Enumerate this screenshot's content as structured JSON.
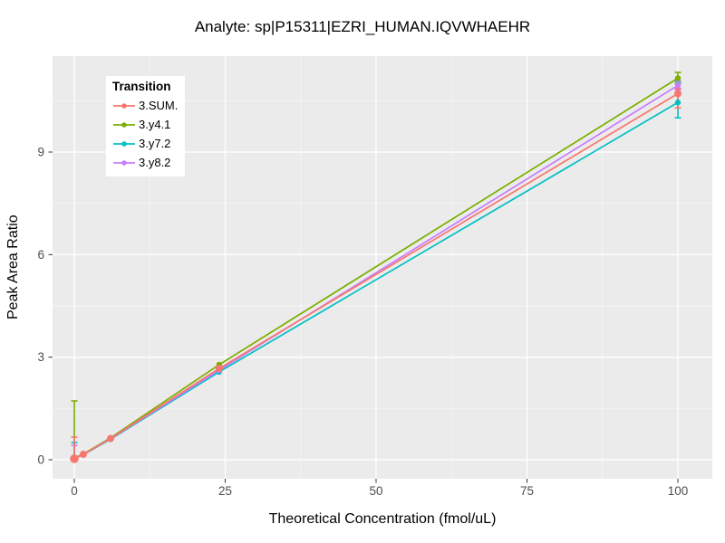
{
  "title": "Analyte: sp|P15311|EZRI_HUMAN.IQVWHAEHR",
  "chart_data": {
    "type": "line",
    "title": "Analyte: sp|P15311|EZRI_HUMAN.IQVWHAEHR",
    "xlabel": "Theoretical Concentration (fmol/uL)",
    "ylabel": "Peak Area Ratio",
    "legend_title": "Transition",
    "legend_position": "top-left-inside",
    "grid": "major+minor",
    "panel_bg": "#EBEBEB",
    "grid_color": "#FFFFFF",
    "tick_label_color": "#4D4D4D",
    "xlim": [
      -3.6,
      105.7
    ],
    "ylim": [
      -0.56,
      11.8
    ],
    "x_ticks": [
      0,
      25,
      50,
      75,
      100
    ],
    "y_ticks": [
      0,
      3,
      6,
      9
    ],
    "x_minor_ticks": [
      12.5,
      37.5,
      62.5,
      87.5
    ],
    "y_minor_ticks": [
      1.5,
      4.5,
      7.5,
      10.5
    ],
    "x": [
      0,
      1.5,
      6,
      24,
      100
    ],
    "series": [
      {
        "name": "3.SUM.",
        "color": "#F8766D",
        "values": [
          0.03,
          0.16,
          0.62,
          2.67,
          10.71
        ],
        "error_low": [
          0.0,
          0.16,
          0.62,
          2.67,
          10.29
        ],
        "error_high": [
          0.66,
          0.16,
          0.62,
          2.67,
          10.86
        ]
      },
      {
        "name": "3.y4.1",
        "color": "#7CAE00",
        "values": [
          0.05,
          0.17,
          0.64,
          2.78,
          11.16
        ],
        "error_low": [
          0.02,
          0.17,
          0.64,
          2.78,
          11.0
        ],
        "error_high": [
          1.72,
          0.17,
          0.64,
          2.78,
          11.33
        ]
      },
      {
        "name": "3.y7.2",
        "color": "#00BFC4",
        "values": [
          0.04,
          0.15,
          0.6,
          2.57,
          10.45
        ],
        "error_low": [
          0.0,
          0.15,
          0.6,
          2.57,
          10.0
        ],
        "error_high": [
          0.5,
          0.15,
          0.6,
          2.57,
          11.05
        ]
      },
      {
        "name": "3.y8.2",
        "color": "#C77CFF",
        "values": [
          0.04,
          0.16,
          0.61,
          2.62,
          10.95
        ],
        "error_low": [
          0.0,
          0.16,
          0.61,
          2.62,
          10.82
        ],
        "error_high": [
          0.42,
          0.16,
          0.61,
          2.62,
          11.08
        ]
      }
    ]
  }
}
